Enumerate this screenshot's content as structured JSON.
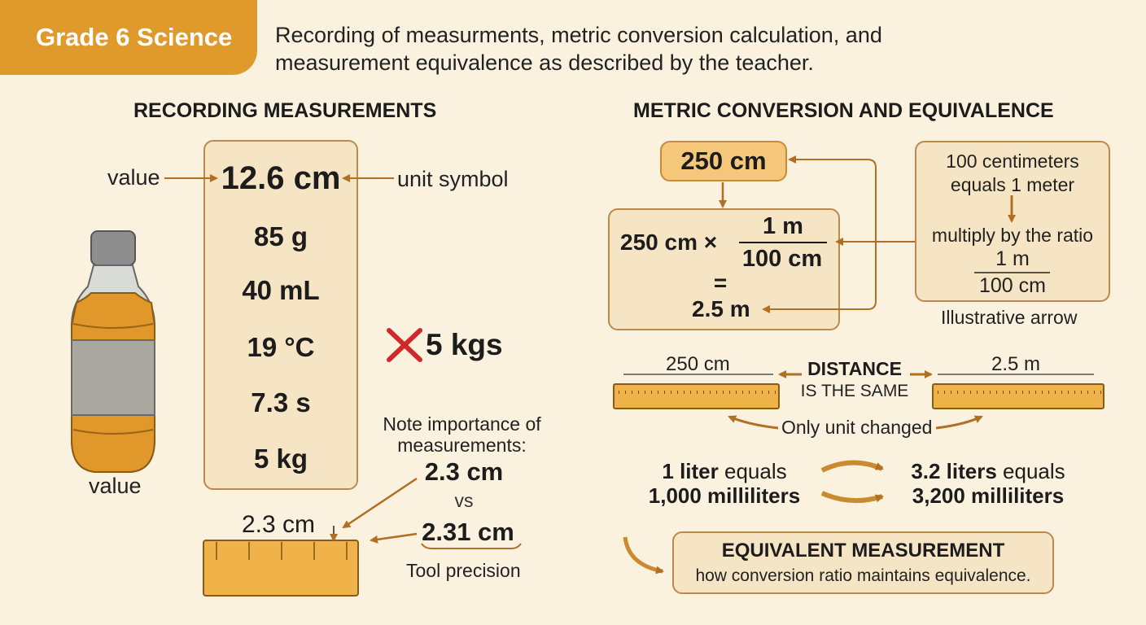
{
  "header": {
    "badge": "Grade 6 Science",
    "subtitle_line1": "Recording of measurments, metric conversion calculation, and",
    "subtitle_line2": "measurement equivalence as described by the teacher."
  },
  "recording": {
    "title": "RECORDING MEASUREMENTS",
    "value_label": "value",
    "unit_label": "unit symbol",
    "measurements": [
      "12.6 cm",
      "85 g",
      "40 mL",
      "19 °C",
      "7.3 s",
      "5 kg"
    ],
    "bottle_label": "value",
    "wrong_example": "5 kgs",
    "note_line1": "Note importance of",
    "note_line2": "measurements:",
    "compare_a": "2.3 cm",
    "compare_vs": "vs",
    "compare_b": "2.31 cm",
    "tool_precision": "Tool precision",
    "ruler_label": "2.3 cm"
  },
  "conversion": {
    "title": "METRIC CONVERSION AND EQUIVALENCE",
    "start_value": "250 cm",
    "calc_prefix": "250 cm ×",
    "ratio_num": "1 m",
    "ratio_den": "100 cm",
    "equals": "=",
    "result": "2.5 m",
    "fact_line1": "100 centimeters",
    "fact_line2": "equals 1 meter",
    "multiply": "multiply by the ratio",
    "fact_num": "1 m",
    "fact_den": "100 cm",
    "illustrative": "Illustrative arrow",
    "ruler_left_label": "250 cm",
    "ruler_right_label": "2.5 m",
    "distance_bold": "DISTANCE",
    "distance_rest": "IS THE SAME",
    "unit_changed": "Only unit changed",
    "liter_a_bold": "1 liter",
    "liter_a_rest": " equals",
    "liter_a_line2": "1,000 milliliters",
    "liter_b_bold": "3.2 liters",
    "liter_b_rest": " equals",
    "liter_b_line2": "3,200 milliliters",
    "equiv_title": "EQUIVALENT MEASUREMENT",
    "equiv_text": "how conversion ratio maintains equivalence."
  },
  "colors": {
    "accent": "#e09a2c",
    "box_fill": "#f6e5c4",
    "box_border": "#b98a4a",
    "arrow": "#b06f22",
    "wrong": "#d1282c"
  }
}
